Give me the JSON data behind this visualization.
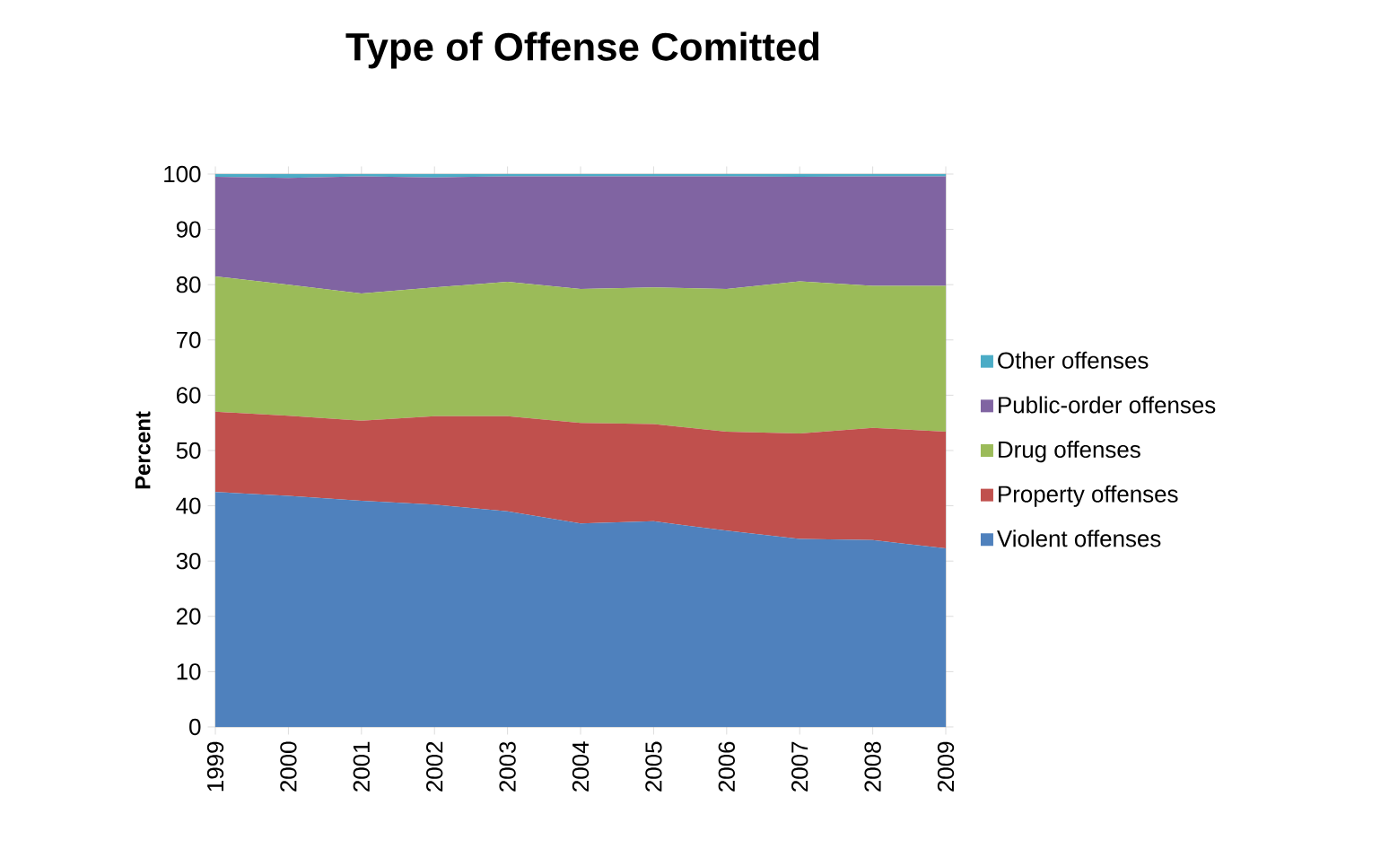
{
  "chart_data": {
    "type": "area",
    "title": "Type of Offense Comitted",
    "ylabel": "Percent",
    "stacked": true,
    "legend": "right",
    "categories": [
      "1999",
      "2000",
      "2001",
      "2002",
      "2003",
      "2004",
      "2005",
      "2006",
      "2007",
      "2008",
      "2009"
    ],
    "ylim": [
      0,
      100
    ],
    "yticks": [
      0,
      10,
      20,
      30,
      40,
      50,
      60,
      70,
      80,
      90,
      100
    ],
    "series": [
      {
        "name": "Violent offenses",
        "color": "#4f81bd",
        "values": [
          42.5,
          41.8,
          40.9,
          40.2,
          39,
          36.8,
          37.2,
          35.5,
          34,
          33.8,
          32.3
        ]
      },
      {
        "name": "Property offenses",
        "color": "#c0504d",
        "values": [
          14.5,
          14.5,
          14.5,
          16,
          17.2,
          18.2,
          17.6,
          17.9,
          19.1,
          20.3,
          21.1
        ]
      },
      {
        "name": "Drug offenses",
        "color": "#9bbb59",
        "values": [
          24.5,
          23.7,
          23,
          23.3,
          24.3,
          24.2,
          24.7,
          25.8,
          27.5,
          25.7,
          26.4
        ]
      },
      {
        "name": "Public-order offenses",
        "color": "#8064a2",
        "values": [
          18,
          19.3,
          21.2,
          19.9,
          19.1,
          20.4,
          20.1,
          20.4,
          18.9,
          19.8,
          19.8
        ]
      },
      {
        "name": "Other offenses",
        "color": "#4bacc6",
        "values": [
          0.5,
          0.7,
          0.4,
          0.6,
          0.4,
          0.4,
          0.4,
          0.4,
          0.5,
          0.4,
          0.4
        ]
      }
    ]
  }
}
